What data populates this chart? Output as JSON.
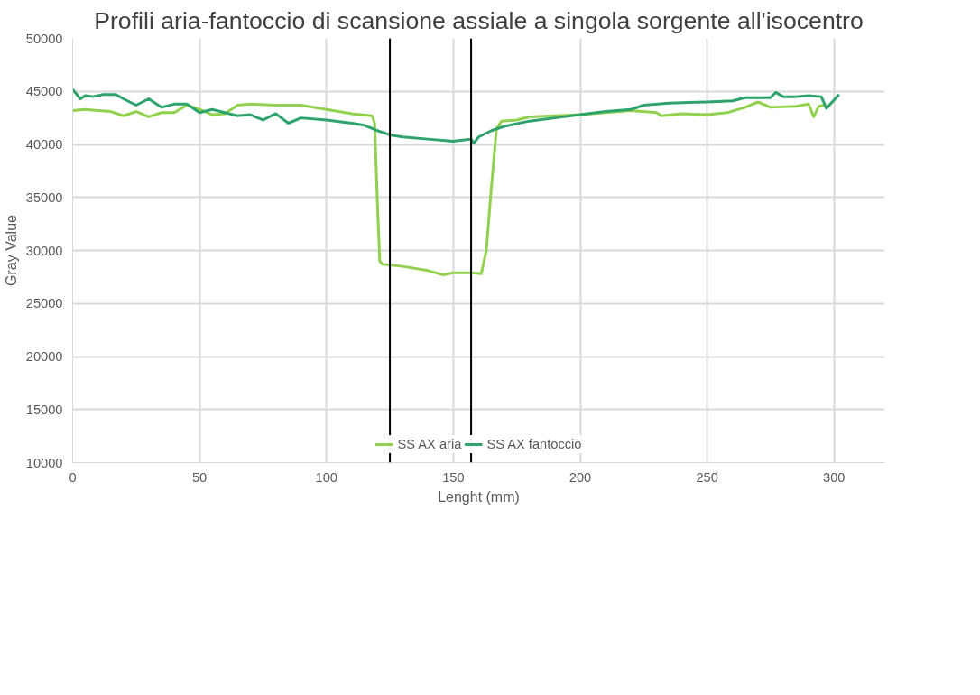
{
  "chart_data": {
    "type": "line",
    "title": "Profili aria-fantoccio di scansione assiale a singola sorgente all'isocentro",
    "xlabel": "Lenght (mm)",
    "ylabel": "Gray Value",
    "xlim": [
      0,
      320
    ],
    "xticks": [
      0,
      50,
      100,
      150,
      200,
      250,
      300
    ],
    "ylim": [
      10000,
      50000
    ],
    "yticks": [
      10000,
      15000,
      20000,
      25000,
      30000,
      35000,
      40000,
      45000,
      50000
    ],
    "grid": true,
    "legend": "bottom",
    "marker": "none",
    "line_style": "solid",
    "series": [
      {
        "name": "SS AX aria",
        "color": "#92d050",
        "x": [
          0,
          5,
          10,
          15,
          20,
          25,
          30,
          35,
          40,
          45,
          50,
          55,
          60,
          65,
          70,
          80,
          90,
          100,
          110,
          118,
          119,
          120,
          121,
          122,
          130,
          140,
          146,
          150,
          157,
          161,
          163,
          165,
          167,
          169,
          175,
          180,
          190,
          200,
          210,
          220,
          230,
          232,
          240,
          250,
          258,
          265,
          270,
          275,
          285,
          290,
          292,
          294,
          296
        ],
        "values": [
          43200,
          43300,
          43200,
          43100,
          42700,
          43100,
          42600,
          43000,
          43000,
          43700,
          43300,
          42800,
          42900,
          43700,
          43800,
          43700,
          43700,
          43300,
          42900,
          42700,
          42000,
          35000,
          29000,
          28700,
          28500,
          28100,
          27700,
          27900,
          27900,
          27800,
          30000,
          36000,
          41500,
          42200,
          42300,
          42600,
          42700,
          42800,
          43000,
          43200,
          43000,
          42700,
          42900,
          42800,
          43000,
          43500,
          44000,
          43500,
          43600,
          43800,
          42600,
          43600,
          43700
        ]
      },
      {
        "name": "SS AX fantoccio",
        "color": "#2ea36b",
        "x": [
          0,
          3,
          5,
          8,
          12,
          17,
          20,
          25,
          30,
          35,
          40,
          45,
          50,
          55,
          60,
          65,
          70,
          75,
          80,
          85,
          90,
          100,
          110,
          115,
          120,
          125,
          130,
          140,
          150,
          157,
          158,
          160,
          165,
          170,
          180,
          190,
          200,
          210,
          220,
          225,
          235,
          250,
          260,
          265,
          275,
          277,
          280,
          285,
          290,
          295,
          297,
          302
        ],
        "values": [
          45200,
          44300,
          44600,
          44500,
          44700,
          44700,
          44300,
          43700,
          44300,
          43500,
          43800,
          43800,
          43000,
          43300,
          43000,
          42700,
          42800,
          42300,
          42900,
          42000,
          42500,
          42300,
          42000,
          41800,
          41300,
          40900,
          40700,
          40500,
          40300,
          40500,
          40100,
          40700,
          41300,
          41700,
          42200,
          42500,
          42800,
          43100,
          43300,
          43700,
          43900,
          44000,
          44100,
          44400,
          44400,
          44900,
          44500,
          44500,
          44600,
          44500,
          43400,
          44700
        ]
      }
    ],
    "ref_lines": [
      {
        "axis": "x",
        "value": 125,
        "color": "#000000"
      },
      {
        "axis": "x",
        "value": 157,
        "color": "#000000"
      }
    ]
  }
}
